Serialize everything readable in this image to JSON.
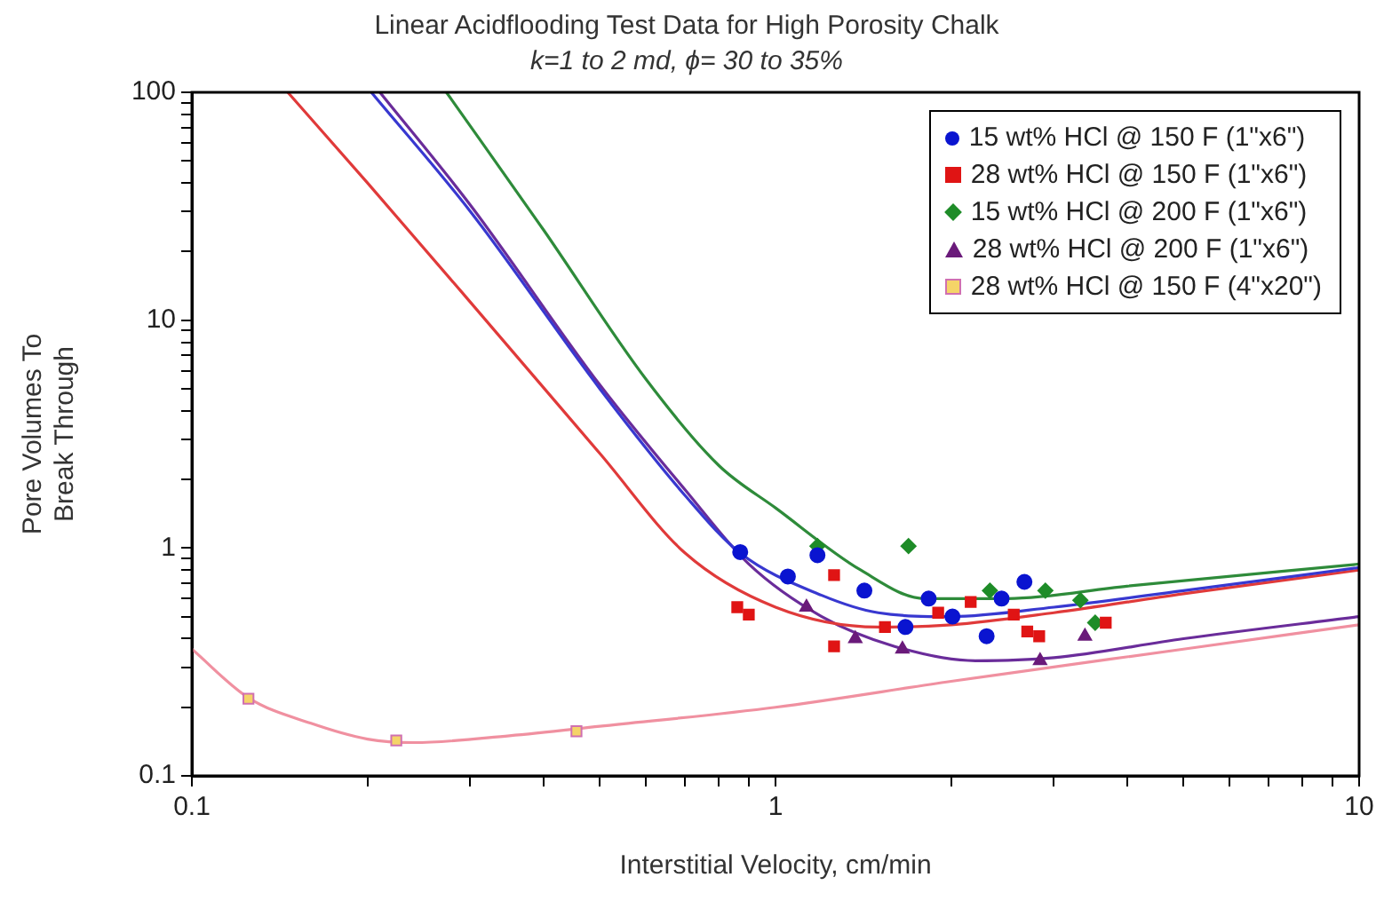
{
  "chart_data": {
    "type": "scatter",
    "title": "Linear Acidflooding Test Data for High Porosity Chalk",
    "subtitle": "k=1 to 2 md, ϕ= 30 to 35%",
    "xlabel": "Interstitial Velocity, cm/min",
    "ylabel": "Pore Volumes To\nBreak Through",
    "log": "xy",
    "grid": false,
    "legend": "top right",
    "xlim": [
      0.1,
      10
    ],
    "ylim": [
      0.1,
      100
    ],
    "xticks": [
      0.1,
      {
        "value": 0.2,
        "label": null
      },
      {
        "value": 0.3,
        "label": null
      },
      {
        "value": 0.4,
        "label": null
      },
      {
        "value": 0.5,
        "label": null
      },
      {
        "value": 0.6,
        "label": null
      },
      {
        "value": 0.7,
        "label": null
      },
      {
        "value": 0.8,
        "label": null
      },
      {
        "value": 0.9,
        "label": null
      },
      1,
      {
        "value": 2,
        "label": null
      },
      {
        "value": 3,
        "label": null
      },
      {
        "value": 4,
        "label": null
      },
      {
        "value": 5,
        "label": null
      },
      {
        "value": 6,
        "label": null
      },
      {
        "value": 7,
        "label": null
      },
      {
        "value": 8,
        "label": null
      },
      {
        "value": 9,
        "label": null
      },
      10
    ],
    "yticks": [
      0.1,
      {
        "value": 0.2,
        "label": null
      },
      {
        "value": 0.3,
        "label": null
      },
      {
        "value": 0.4,
        "label": null
      },
      {
        "value": 0.5,
        "label": null
      },
      {
        "value": 0.6,
        "label": null
      },
      {
        "value": 0.7,
        "label": null
      },
      {
        "value": 0.8,
        "label": null
      },
      {
        "value": 0.9,
        "label": null
      },
      1,
      {
        "value": 2,
        "label": null
      },
      {
        "value": 3,
        "label": null
      },
      {
        "value": 4,
        "label": null
      },
      {
        "value": 5,
        "label": null
      },
      {
        "value": 6,
        "label": null
      },
      {
        "value": 7,
        "label": null
      },
      {
        "value": 8,
        "label": null
      },
      {
        "value": 9,
        "label": null
      },
      10,
      {
        "value": 20,
        "label": null
      },
      {
        "value": 30,
        "label": null
      },
      {
        "value": 40,
        "label": null
      },
      {
        "value": 50,
        "label": null
      },
      {
        "value": 60,
        "label": null
      },
      {
        "value": 70,
        "label": null
      },
      {
        "value": 80,
        "label": null
      },
      {
        "value": 90,
        "label": null
      },
      100
    ],
    "series": [
      {
        "type": "scatter",
        "name": "15 wt% HCl @ 150 F (1\"x6\")",
        "color": "#0a14d0",
        "marker": "circle",
        "x": [
          0.87,
          1.05,
          1.18,
          1.42,
          1.83,
          2.01,
          1.67,
          2.3,
          2.44,
          2.67
        ],
        "values": [
          0.96,
          0.75,
          0.93,
          0.65,
          0.6,
          0.5,
          0.45,
          0.41,
          0.6,
          0.71
        ]
      },
      {
        "type": "scatter",
        "name": "28 wt% HCl @ 150 F (1\"x6\")",
        "color": "#e01414",
        "marker": "square",
        "x": [
          0.86,
          0.9,
          1.26,
          1.26,
          1.54,
          1.9,
          2.16,
          2.56,
          2.7,
          2.83,
          3.68
        ],
        "values": [
          0.55,
          0.51,
          0.76,
          0.37,
          0.45,
          0.52,
          0.58,
          0.51,
          0.43,
          0.41,
          0.47
        ]
      },
      {
        "type": "scatter",
        "name": "15 wt% HCl @ 200 F (1\"x6\")",
        "color": "#1e8c28",
        "marker": "diamond",
        "x": [
          1.18,
          1.69,
          2.33,
          2.9,
          3.33,
          3.53
        ],
        "values": [
          1.02,
          1.02,
          0.65,
          0.65,
          0.59,
          0.47
        ]
      },
      {
        "type": "scatter",
        "name": "28 wt% HCl @ 200 F (1\"x6\")",
        "color": "#6a1a7a",
        "marker": "triangle",
        "x": [
          1.13,
          1.37,
          1.65,
          2.84,
          3.39
        ],
        "values": [
          0.55,
          0.4,
          0.36,
          0.32,
          0.41
        ]
      },
      {
        "type": "scatter",
        "name": "28 wt% HCl @ 150 F (4\"x20\")",
        "color": "#f5d468",
        "marker": "square",
        "x": [
          0.125,
          0.224,
          0.456
        ],
        "values": [
          0.218,
          0.143,
          0.157
        ]
      },
      {
        "type": "line",
        "color": "#3838d0",
        "marker": "none",
        "x": [
          0.203,
          0.3,
          0.5,
          0.7,
          0.87,
          1.2,
          1.5,
          2,
          3,
          5,
          10
        ],
        "values": [
          100,
          30,
          5,
          1.7,
          0.95,
          0.62,
          0.52,
          0.5,
          0.55,
          0.65,
          0.82
        ]
      },
      {
        "type": "line",
        "color": "#e03a3a",
        "marker": "none",
        "x": [
          0.146,
          0.2,
          0.3,
          0.5,
          0.7,
          1,
          1.5,
          2,
          3,
          5,
          10
        ],
        "values": [
          100,
          40,
          12,
          2.6,
          0.95,
          0.55,
          0.45,
          0.46,
          0.52,
          0.63,
          0.8
        ]
      },
      {
        "type": "line",
        "color": "#2e8b3a",
        "marker": "none",
        "x": [
          0.273,
          0.4,
          0.6,
          0.8,
          1,
          1.4,
          1.8,
          2.5,
          4,
          10
        ],
        "values": [
          100,
          25,
          5.5,
          2.3,
          1.5,
          0.8,
          0.6,
          0.6,
          0.68,
          0.85
        ]
      },
      {
        "type": "line",
        "color": "#6a2c9a",
        "marker": "none",
        "x": [
          0.21,
          0.3,
          0.5,
          0.7,
          0.9,
          1.2,
          1.6,
          2.2,
          3,
          5,
          10
        ],
        "values": [
          100,
          32,
          5.2,
          1.8,
          0.85,
          0.5,
          0.37,
          0.32,
          0.33,
          0.4,
          0.5
        ]
      },
      {
        "type": "line",
        "color": "#f090a0",
        "marker": "none",
        "x": [
          0.1,
          0.125,
          0.16,
          0.2,
          0.24,
          0.35,
          0.5,
          1,
          2,
          5,
          10
        ],
        "values": [
          0.36,
          0.22,
          0.17,
          0.145,
          0.14,
          0.15,
          0.165,
          0.2,
          0.26,
          0.36,
          0.46
        ]
      }
    ]
  }
}
